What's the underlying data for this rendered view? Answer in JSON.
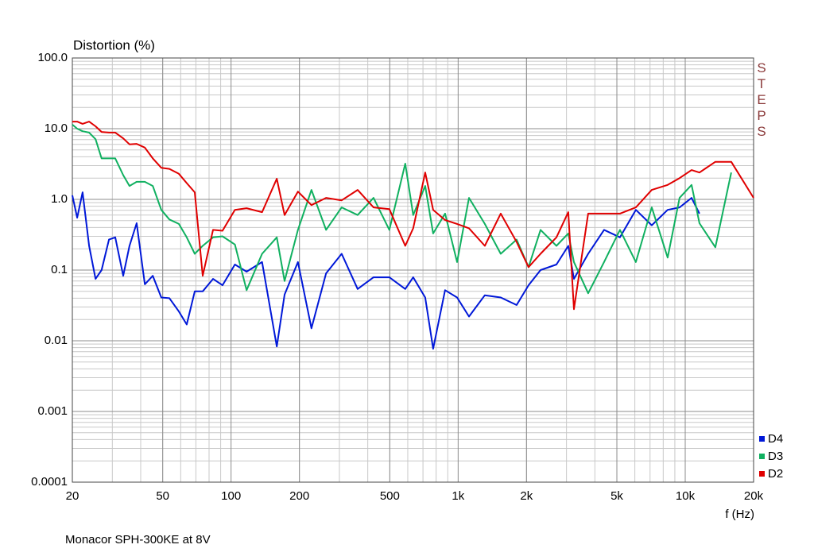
{
  "chart_data": {
    "type": "line",
    "title": "Distortion (%)",
    "x_label": "f (Hz)",
    "footer": "Monacor SPH-300KE at 8V",
    "watermark": "STEPS",
    "log_x": true,
    "log_y": true,
    "grid": true,
    "minor_grid": true,
    "legend": "bottom-right",
    "xlim": [
      20,
      20000
    ],
    "ylim": [
      0.0001,
      100
    ],
    "xticks": [
      20,
      50,
      100,
      200,
      500,
      {
        "value": 1000,
        "label": "1k"
      },
      {
        "value": 2000,
        "label": "2k"
      },
      {
        "value": 5000,
        "label": "5k"
      },
      {
        "value": 10000,
        "label": "10k"
      },
      {
        "value": 20000,
        "label": "20k"
      }
    ],
    "yticks": [
      {
        "value": 100,
        "label": "100.0"
      },
      {
        "value": 10,
        "label": "10.0"
      },
      {
        "value": 1,
        "label": "1.0"
      },
      0.1,
      0.01,
      0.001,
      0.0001
    ],
    "x": [
      20,
      21,
      22.2,
      23.7,
      25.3,
      26.9,
      29,
      30.9,
      33.5,
      35.7,
      38.4,
      41.7,
      45.2,
      49.3,
      53.5,
      58.9,
      63.8,
      69.2,
      75,
      83.3,
      91.7,
      104,
      117,
      137,
      159,
      172,
      197,
      226,
      262,
      307,
      361,
      424,
      498,
      585,
      634,
      716,
      776,
      876,
      989,
      1116,
      1311,
      1540,
      1810,
      2042,
      2306,
      2709,
      3055,
      3234,
      3738,
      4392,
      5160,
      6063,
      7123,
      8368,
      9445,
      10662,
      11556,
      13577,
      15950,
      20000
    ],
    "series": [
      {
        "name": "D4",
        "color": "#0018d8",
        "values": [
          1.14,
          0.55,
          1.26,
          0.22,
          0.075,
          0.1,
          0.27,
          0.29,
          0.083,
          0.22,
          0.46,
          0.063,
          0.083,
          0.041,
          0.04,
          0.026,
          0.017,
          0.05,
          0.05,
          0.075,
          0.061,
          0.12,
          0.095,
          0.13,
          0.0083,
          0.045,
          0.13,
          0.015,
          0.09,
          0.17,
          0.054,
          0.079,
          0.079,
          0.054,
          0.079,
          0.041,
          0.0077,
          0.052,
          0.041,
          0.022,
          0.044,
          0.041,
          0.032,
          0.061,
          0.1,
          0.12,
          0.22,
          0.075,
          0.17,
          0.37,
          0.29,
          0.71,
          0.43,
          0.71,
          0.77,
          1.05,
          0.63,
          null,
          null,
          null
        ]
      },
      {
        "name": "D3",
        "color": "#10b060",
        "values": [
          11.4,
          10.0,
          9.2,
          8.8,
          7.1,
          3.8,
          3.8,
          3.8,
          2.2,
          1.55,
          1.77,
          1.77,
          1.55,
          0.71,
          0.52,
          0.45,
          0.29,
          0.17,
          0.22,
          0.29,
          0.3,
          0.23,
          0.052,
          0.17,
          0.29,
          0.07,
          0.37,
          1.36,
          0.37,
          0.77,
          0.6,
          1.05,
          0.37,
          3.2,
          0.6,
          1.55,
          0.33,
          0.63,
          0.13,
          1.05,
          0.45,
          0.17,
          0.27,
          0.11,
          0.37,
          0.22,
          0.33,
          0.13,
          0.047,
          0.13,
          0.37,
          0.13,
          0.77,
          0.15,
          1.05,
          1.6,
          0.46,
          0.21,
          2.4,
          null
        ]
      },
      {
        "name": "D2",
        "color": "#e00000",
        "values": [
          12.6,
          12.6,
          11.7,
          12.6,
          10.8,
          9.0,
          8.8,
          8.8,
          7.3,
          6.0,
          6.1,
          5.4,
          3.8,
          2.8,
          2.7,
          2.3,
          1.7,
          1.26,
          0.083,
          0.37,
          0.36,
          0.71,
          0.75,
          0.66,
          1.96,
          0.6,
          1.29,
          0.83,
          1.05,
          0.97,
          1.36,
          0.77,
          0.73,
          0.22,
          0.39,
          2.4,
          0.71,
          0.51,
          0.45,
          0.39,
          0.22,
          0.63,
          0.25,
          0.11,
          0.17,
          0.29,
          0.66,
          0.028,
          0.63,
          0.63,
          0.63,
          0.77,
          1.36,
          1.6,
          2.0,
          2.6,
          2.4,
          3.4,
          3.4,
          1.05
        ]
      }
    ]
  }
}
